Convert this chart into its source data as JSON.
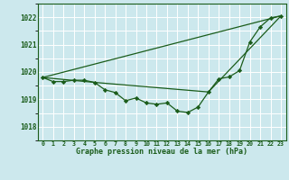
{
  "title": "Graphe pression niveau de la mer (hPa)",
  "background_color": "#cce8ed",
  "grid_color": "#ffffff",
  "line_color": "#1a5c1a",
  "marker_color": "#1a5c1a",
  "xlim": [
    -0.5,
    23.5
  ],
  "ylim": [
    1017.5,
    1022.5
  ],
  "yticks": [
    1018,
    1019,
    1020,
    1021,
    1022
  ],
  "xtick_labels": [
    "0",
    "1",
    "2",
    "3",
    "4",
    "5",
    "6",
    "7",
    "8",
    "9",
    "10",
    "11",
    "12",
    "13",
    "14",
    "15",
    "16",
    "17",
    "18",
    "19",
    "20",
    "21",
    "22",
    "23"
  ],
  "series1": [
    1019.8,
    1019.65,
    1019.65,
    1019.7,
    1019.7,
    1019.62,
    1019.35,
    1019.25,
    1018.95,
    1019.05,
    1018.87,
    1018.82,
    1018.87,
    1018.57,
    1018.52,
    1018.72,
    1019.27,
    1019.75,
    1019.82,
    1020.05,
    1021.1,
    1021.65,
    1021.98,
    1022.05
  ],
  "line2_x": [
    0,
    23
  ],
  "line2_y": [
    1019.8,
    1022.05
  ],
  "line3_x": [
    0,
    5,
    16,
    23
  ],
  "line3_y": [
    1019.8,
    1019.62,
    1019.27,
    1022.05
  ]
}
